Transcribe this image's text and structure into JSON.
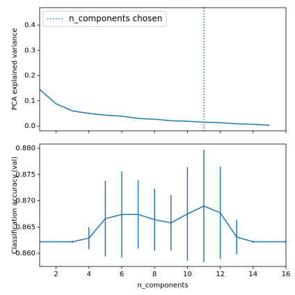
{
  "chart_data": [
    {
      "type": "line",
      "ylabel": "PCA explained variance",
      "x": [
        1,
        2,
        3,
        4,
        5,
        6,
        7,
        8,
        9,
        10,
        11,
        12,
        13,
        14,
        15
      ],
      "values": [
        0.145,
        0.088,
        0.06,
        0.05,
        0.043,
        0.039,
        0.03,
        0.027,
        0.021,
        0.019,
        0.015,
        0.013,
        0.009,
        0.007,
        0.003
      ],
      "color": "#1f77b4",
      "xlim": [
        1,
        16
      ],
      "ylim": [
        -0.019,
        0.469
      ],
      "yticks": [
        {
          "value": 0,
          "label": "0.0"
        },
        0.1,
        0.2,
        0.3,
        0.4
      ],
      "vline": 11,
      "vline_label": "n_components chosen",
      "legend": "upper left"
    },
    {
      "type": "errorbar",
      "ylabel": "Classification accuracy (val)",
      "xlabel": "n_components",
      "x": [
        1,
        2,
        3,
        4,
        5,
        6,
        7,
        8,
        9,
        10,
        11,
        12,
        13,
        14,
        15,
        16
      ],
      "values": [
        0.8622,
        0.8622,
        0.8622,
        0.8629,
        0.8666,
        0.8674,
        0.8674,
        0.8664,
        0.8658,
        0.8675,
        0.869,
        0.8677,
        0.8631,
        0.8622,
        0.8622,
        0.8622
      ],
      "errors": [
        0.0001,
        0.0001,
        0.0002,
        0.0021,
        0.0072,
        0.0082,
        0.0065,
        0.0059,
        0.0053,
        0.0089,
        0.0107,
        0.0088,
        0.0033,
        0.0002,
        0.0001,
        0.0002
      ],
      "color": "#1f77b4",
      "xlim": [
        1,
        16
      ],
      "ylim": [
        0.8575,
        0.8808
      ],
      "xticks": [
        2,
        4,
        6,
        8,
        10,
        12,
        14,
        16
      ],
      "yticks": [
        {
          "value": 0.86,
          "label": "0.860"
        },
        {
          "value": 0.865,
          "label": "0.865"
        },
        {
          "value": 0.87,
          "label": "0.870"
        },
        {
          "value": 0.875,
          "label": "0.875"
        },
        {
          "value": 0.88,
          "label": "0.880"
        }
      ]
    }
  ]
}
